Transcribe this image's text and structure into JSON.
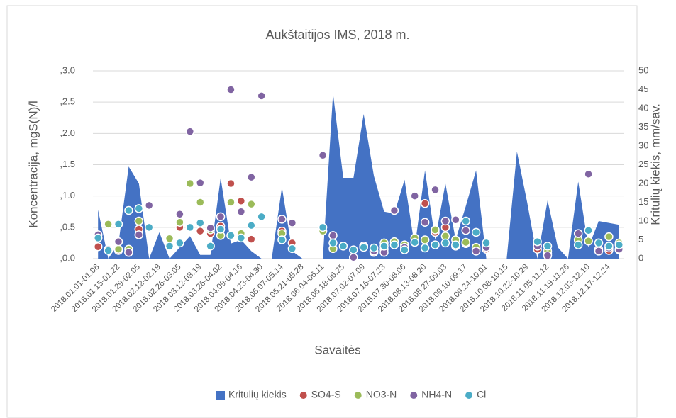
{
  "chart_data": {
    "type": "area+scatter",
    "title": "Aukštaitijos IMS, 2018 m.",
    "x_label": "Savaitės",
    "y_label": "Koncentracija, mgS(N)/l",
    "y2_label": "Kritulių kiekis, mm/sav.",
    "categories": [
      "2018.01.01-01.08",
      null,
      "2018.01.15-01.22",
      null,
      "2018.01.29-02.05",
      null,
      "2018.02.12-02.19",
      null,
      "2018.02.26-03.05",
      null,
      "2018.03.12-03.19",
      null,
      "2018.03.26-04.02",
      null,
      "2018.04.09-04.16",
      null,
      "2018.04.23-04.30",
      null,
      "2018.05.07-05.14",
      null,
      "2018.05.21-05.28",
      null,
      "2018.06.04-06.11",
      null,
      "2018.06.18-06.25",
      null,
      "2018.07.02-07.09",
      null,
      "2018.07.16-07.23",
      null,
      "2018.07.30-08.06",
      null,
      "2018.08.13-08.20",
      null,
      "2018.08.27-09.03",
      null,
      "2018.09.10-09.17",
      null,
      "2018.09.24-10.01",
      null,
      "2018.10.08-10.15",
      null,
      "2018.10.22-10.29",
      null,
      "2018.11.05-11.12",
      null,
      "2018.11.19-11.26",
      null,
      "2018.12.03-12.10",
      null,
      "2018.12.17-12.24",
      null
    ],
    "ylim": [
      0,
      3.0
    ],
    "yticks": [
      {
        "value": 0,
        "label": ",0.0"
      },
      {
        "value": 0.5,
        "label": ",0.5"
      },
      {
        "value": 1.0,
        "label": ",1.0"
      },
      {
        "value": 1.5,
        "label": ",1.5"
      },
      {
        "value": 2.0,
        "label": ",2.0"
      },
      {
        "value": 2.5,
        "label": ",2.5"
      },
      {
        "value": 3.0,
        "label": ",3.0"
      }
    ],
    "y2lim": [
      0,
      50
    ],
    "y2ticks": [
      0,
      5,
      10,
      15,
      20,
      25,
      30,
      35,
      40,
      45,
      50
    ],
    "grid": true,
    "legend": "bottom",
    "series": [
      {
        "name": "Kritulių kiekis",
        "type": "area",
        "axis": "y2",
        "color": "#4472c4",
        "values": [
          13,
          0,
          4,
          24.5,
          20,
          0,
          7,
          0,
          3,
          6,
          1,
          1,
          21.5,
          4,
          5,
          2,
          0,
          0,
          19,
          2,
          0,
          0,
          0,
          44,
          21.5,
          21.5,
          38.5,
          22,
          12.5,
          12,
          21,
          3,
          23.5,
          5,
          20,
          5,
          14,
          23.5,
          0,
          0,
          0,
          28.5,
          15,
          0,
          15.5,
          3,
          0,
          20.5,
          3,
          10,
          9.5,
          9
        ]
      },
      {
        "name": "SO4-S",
        "type": "scatter",
        "color": "#c0504d",
        "values": [
          0.19,
          null,
          0.13,
          0.1,
          0.47,
          null,
          null,
          null,
          0.5,
          null,
          0.44,
          0.4,
          0.52,
          1.2,
          0.92,
          0.31,
          null,
          null,
          0.44,
          0.25,
          null,
          null,
          null,
          null,
          null,
          null,
          0.2,
          0.1,
          0.15,
          null,
          0.15,
          null,
          0.88,
          0.42,
          0.5,
          0.2,
          0.24,
          0.15,
          0.15,
          null,
          null,
          null,
          null,
          0.15,
          0.08,
          null,
          null,
          0.3,
          0.28,
          0.15,
          0.13,
          0.14
        ]
      },
      {
        "name": "NO3-N",
        "type": "scatter",
        "color": "#9bbb59",
        "values": [
          null,
          0.55,
          0.15,
          0.15,
          0.6,
          null,
          null,
          0.32,
          0.58,
          1.2,
          0.9,
          0.46,
          0.37,
          0.9,
          0.4,
          0.87,
          null,
          null,
          0.4,
          null,
          null,
          null,
          0.44,
          0.16,
          null,
          null,
          0.2,
          0.12,
          0.25,
          0.27,
          0.22,
          0.33,
          0.3,
          0.46,
          0.36,
          0.3,
          0.26,
          0.18,
          0.2,
          null,
          null,
          null,
          null,
          0.2,
          0.12,
          null,
          null,
          0.3,
          0.28,
          0.25,
          0.35,
          0.25
        ]
      },
      {
        "name": "NH4-N",
        "type": "scatter",
        "color": "#8064a2",
        "values": [
          0.38,
          0.15,
          0.27,
          0.1,
          0.38,
          0.85,
          null,
          null,
          0.71,
          2.03,
          1.21,
          0.49,
          0.67,
          2.7,
          0.75,
          1.3,
          2.6,
          null,
          0.63,
          0.57,
          null,
          null,
          1.65,
          0.37,
          null,
          0.02,
          0.2,
          0.12,
          0.1,
          0.77,
          0.18,
          1.0,
          0.58,
          1.1,
          0.6,
          0.62,
          0.45,
          0.12,
          0.18,
          null,
          null,
          null,
          null,
          0.2,
          0.05,
          null,
          null,
          0.4,
          1.35,
          0.12,
          0.17,
          0.15
        ]
      },
      {
        "name": "Cl",
        "type": "scatter",
        "color": "#4bacc6",
        "values": [
          0.33,
          0.13,
          0.55,
          0.77,
          0.8,
          0.5,
          null,
          0.2,
          0.25,
          0.5,
          0.57,
          0.2,
          0.47,
          0.37,
          0.33,
          0.53,
          0.67,
          null,
          0.3,
          0.16,
          null,
          null,
          0.5,
          0.25,
          0.2,
          0.14,
          0.18,
          0.17,
          0.2,
          0.22,
          0.14,
          0.26,
          0.17,
          0.22,
          0.25,
          0.22,
          0.6,
          0.42,
          0.25,
          null,
          null,
          null,
          null,
          0.27,
          0.2,
          null,
          null,
          0.22,
          0.45,
          0.25,
          0.2,
          0.22
        ]
      }
    ]
  }
}
